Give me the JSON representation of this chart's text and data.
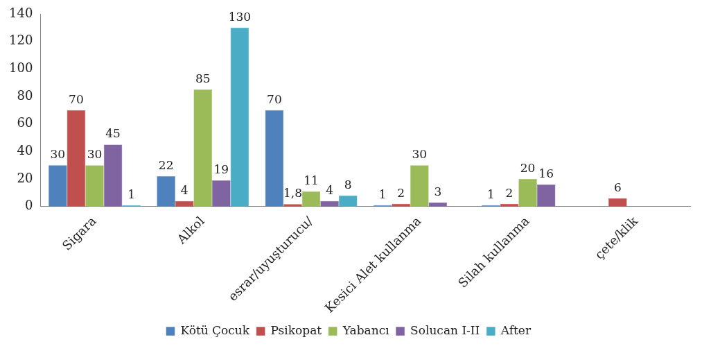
{
  "chart_data": {
    "type": "bar",
    "categories": [
      "Sigara",
      "Alkol",
      "esrar/uyuşturucu/",
      "Kesici Alet kullanma",
      "Silah kullanma",
      "çete/klik"
    ],
    "series": [
      {
        "name": "Kötü Çocuk",
        "color": "#4f81bd",
        "values": [
          30,
          22,
          70,
          1,
          1,
          null
        ],
        "value_labels": [
          "30",
          "22",
          "70",
          "1",
          "1",
          null
        ]
      },
      {
        "name": "Psikopat",
        "color": "#c0504d",
        "values": [
          70,
          4,
          1.8,
          2,
          2,
          6
        ],
        "value_labels": [
          "70",
          "4",
          "1,8",
          "2",
          "2",
          "6"
        ]
      },
      {
        "name": "Yabancı",
        "color": "#9bbb59",
        "values": [
          30,
          85,
          11,
          30,
          20,
          null
        ],
        "value_labels": [
          "30",
          "85",
          "11",
          "30",
          "20",
          null
        ]
      },
      {
        "name": "Solucan I-II",
        "color": "#8064a2",
        "values": [
          45,
          19,
          4,
          3,
          16,
          null
        ],
        "value_labels": [
          "45",
          "19",
          "4",
          "3",
          "16",
          null
        ]
      },
      {
        "name": "After",
        "color": "#4bacc6",
        "values": [
          1,
          130,
          8,
          null,
          null,
          null
        ],
        "value_labels": [
          "1",
          "130",
          "8",
          null,
          null,
          null
        ]
      }
    ],
    "ylim": [
      0,
      140
    ],
    "yticks": [
      0,
      20,
      40,
      60,
      80,
      100,
      120,
      140
    ],
    "grid": false,
    "legend": "bottom"
  }
}
